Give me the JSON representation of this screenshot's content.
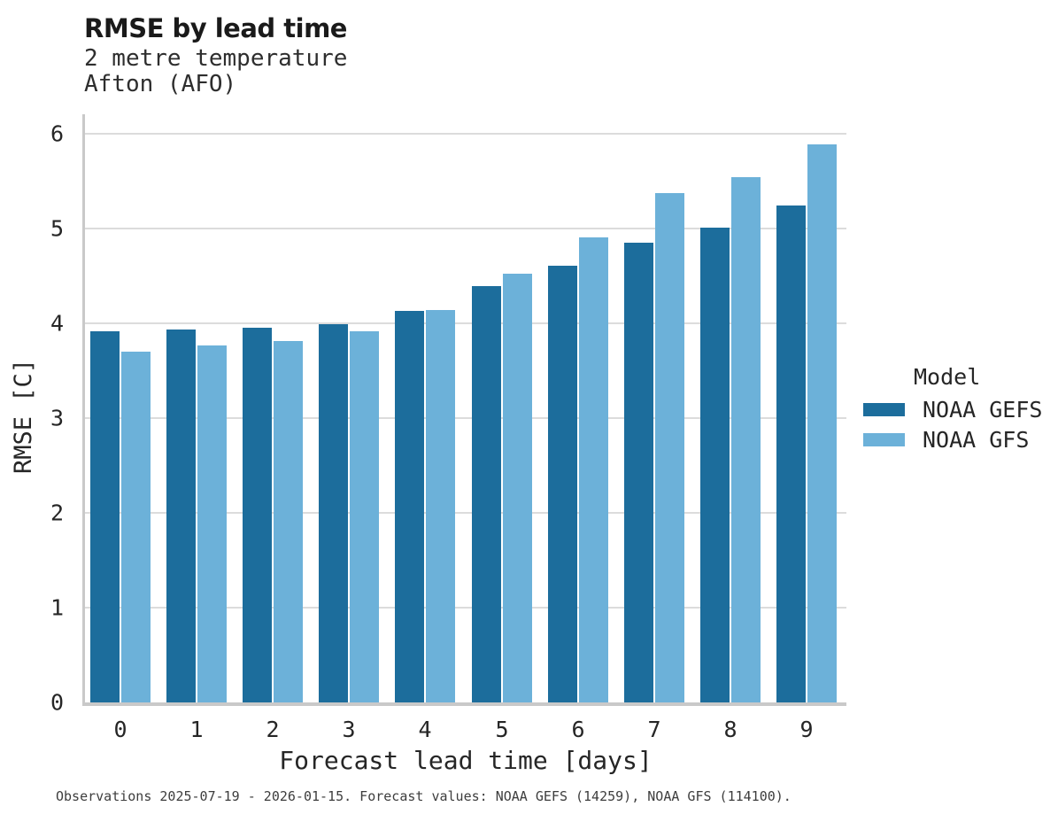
{
  "header": {
    "title": "RMSE by lead time",
    "subtitle_variable": "2 metre temperature",
    "subtitle_station": "Afton (AFO)"
  },
  "chart_data": {
    "type": "bar",
    "title": "RMSE by lead time",
    "subtitle": "2 metre temperature — Afton (AFO)",
    "xlabel": "Forecast lead time [days]",
    "ylabel": "RMSE [C]",
    "categories": [
      0,
      1,
      2,
      3,
      4,
      5,
      6,
      7,
      8,
      9
    ],
    "series": [
      {
        "name": "NOAA GEFS",
        "color": "#1c6d9c",
        "values": [
          3.92,
          3.93,
          3.95,
          3.99,
          4.13,
          4.39,
          4.61,
          4.85,
          5.01,
          5.24
        ]
      },
      {
        "name": "NOAA GFS",
        "color": "#6cb1d9",
        "values": [
          3.7,
          3.77,
          3.81,
          3.92,
          4.14,
          4.52,
          4.91,
          5.37,
          5.54,
          5.89
        ]
      }
    ],
    "ylim": [
      0,
      6.2
    ],
    "yticks": [
      0,
      1,
      2,
      3,
      4,
      5,
      6
    ],
    "grid": "horizontal",
    "legend_position": "right",
    "legend_title": "Model"
  },
  "legend": {
    "title": "Model",
    "entries": [
      {
        "label": "NOAA GEFS",
        "color": "#1c6d9c"
      },
      {
        "label": "NOAA GFS",
        "color": "#6cb1d9"
      }
    ]
  },
  "footer": {
    "note": "Observations 2025-07-19 - 2026-01-15. Forecast values: NOAA GEFS (14259), NOAA GFS (114100)."
  },
  "style": {
    "gridline_color": "#dcdcdc",
    "spine_color": "#c9c9c9"
  }
}
